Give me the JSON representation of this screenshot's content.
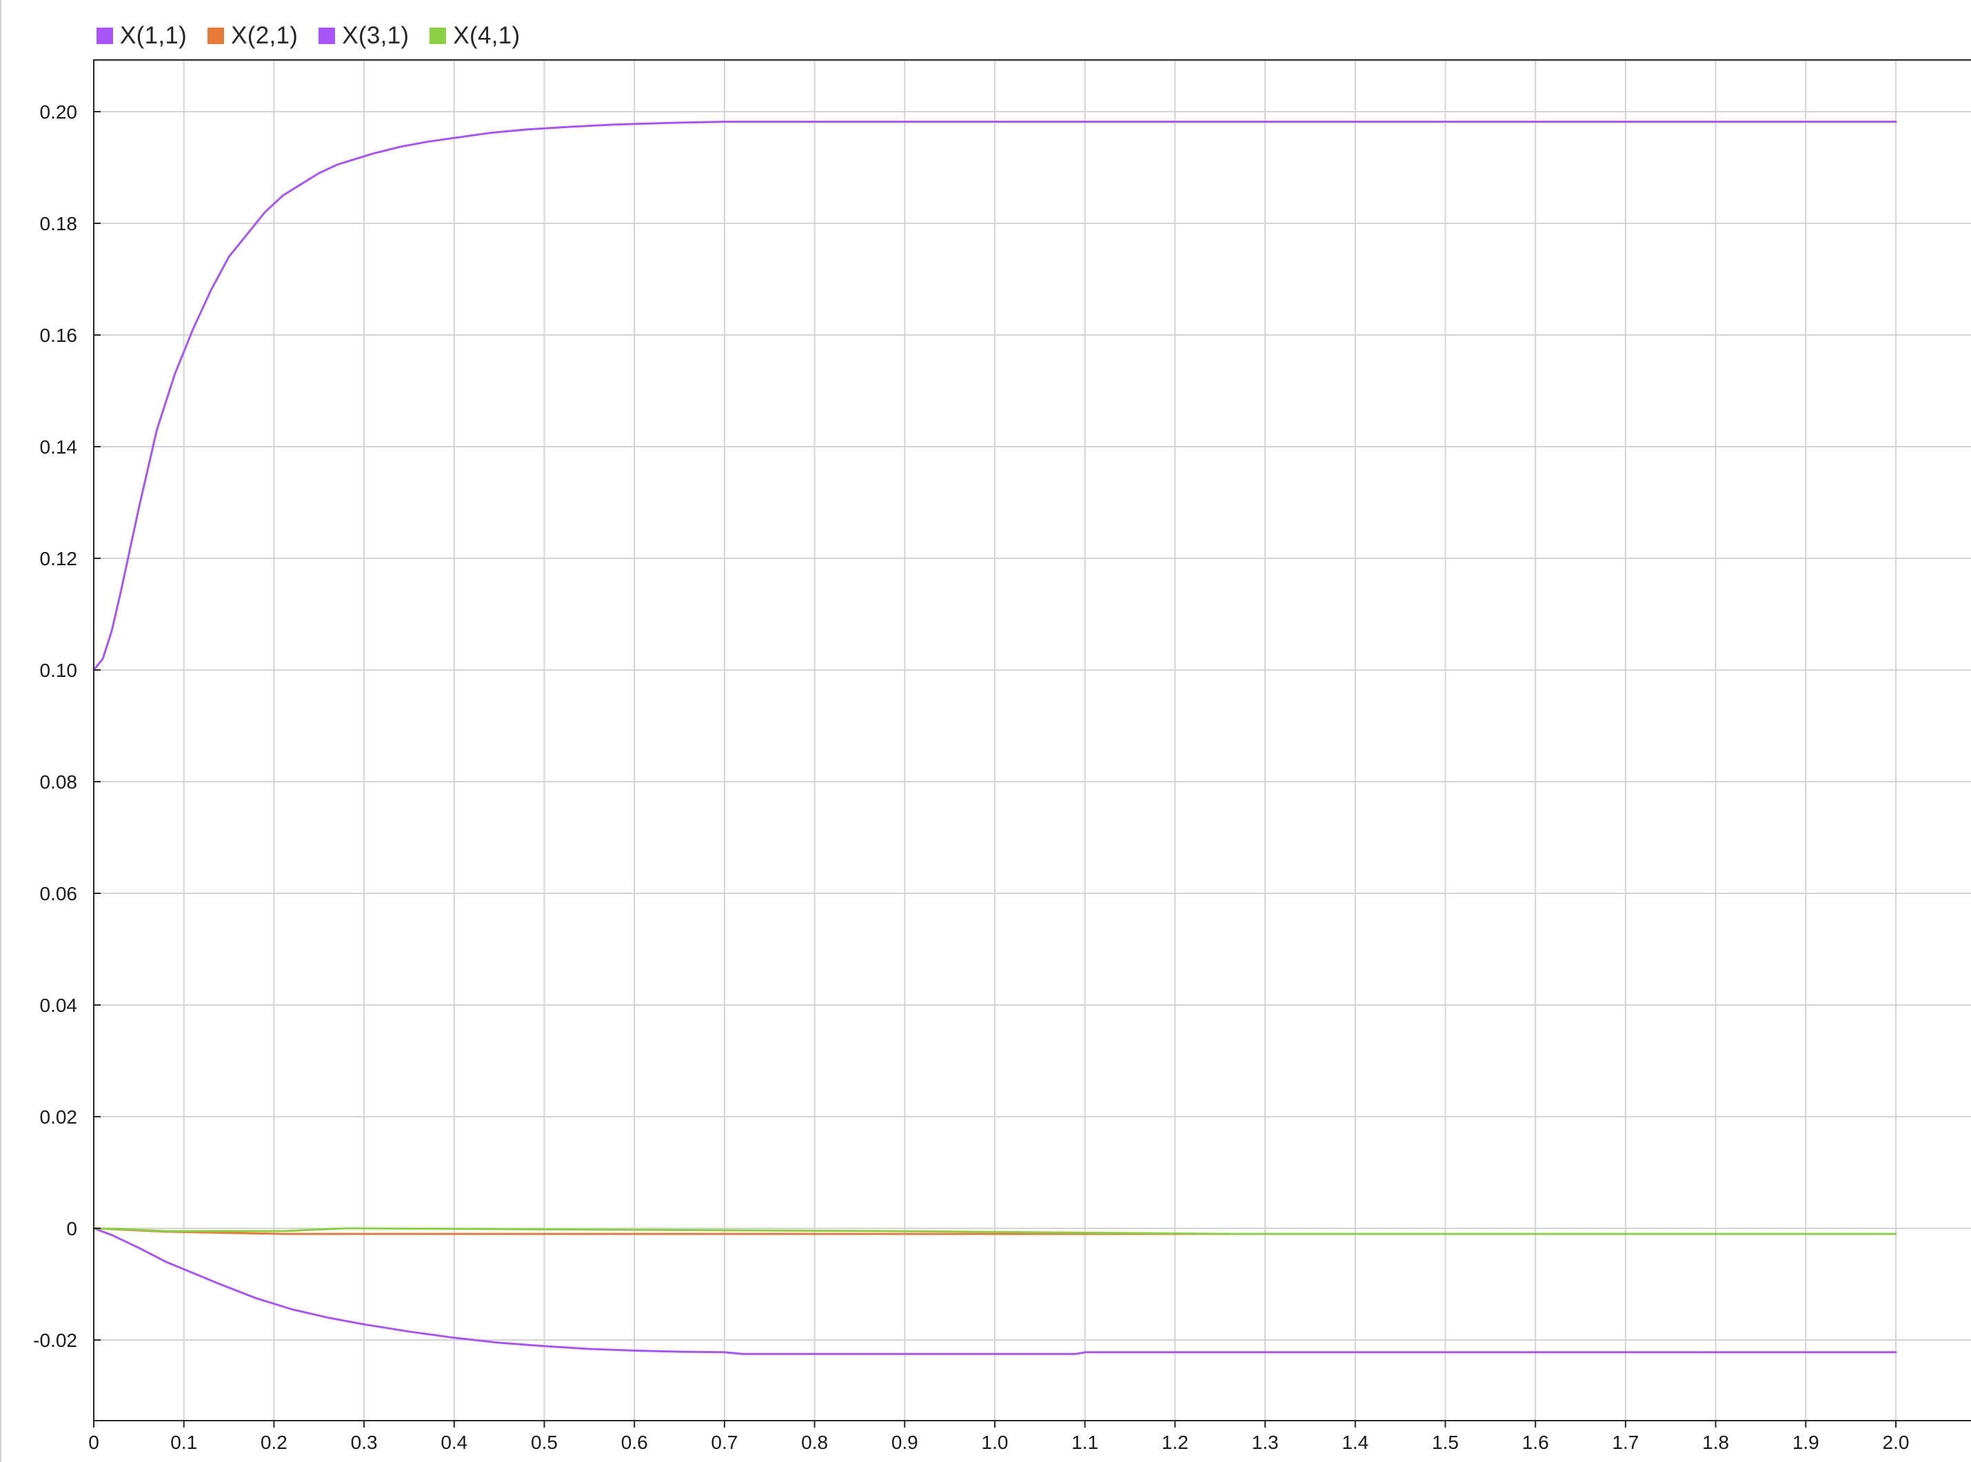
{
  "legend": [
    {
      "label": "X(1,1)",
      "color": "#a855f7"
    },
    {
      "label": "X(2,1)",
      "color": "#e8793a"
    },
    {
      "label": "X(3,1)",
      "color": "#a855f7"
    },
    {
      "label": "X(4,1)",
      "color": "#8cd043"
    }
  ],
  "chart_data": {
    "type": "line",
    "xlim": [
      0,
      2.0
    ],
    "ylim": [
      -0.035,
      0.21
    ],
    "grid": true,
    "legend_position": "top-left",
    "xticks": [
      0,
      0.1,
      0.2,
      0.3,
      0.4,
      0.5,
      0.6,
      0.7,
      0.8,
      0.9,
      1.0,
      1.1,
      1.2,
      1.3,
      1.4,
      1.5,
      1.6,
      1.7,
      1.8,
      1.9,
      2.0
    ],
    "xtick_labels": [
      "0",
      "0.1",
      "0.2",
      "0.3",
      "0.4",
      "0.5",
      "0.6",
      "0.7",
      "0.8",
      "0.9",
      "1.0",
      "1.1",
      "1.2",
      "1.3",
      "1.4",
      "1.5",
      "1.6",
      "1.7",
      "1.8",
      "1.9",
      "2.0"
    ],
    "yticks": [
      -0.02,
      0,
      0.02,
      0.04,
      0.06,
      0.08,
      0.1,
      0.12,
      0.14,
      0.16,
      0.18,
      0.2
    ],
    "ytick_labels": [
      "-0.02",
      "0",
      "0.02",
      "0.04",
      "0.06",
      "0.08",
      "0.10",
      "0.12",
      "0.14",
      "0.16",
      "0.18",
      "0.20"
    ],
    "series": [
      {
        "name": "X(1,1)",
        "color": "#a855f7",
        "x": [
          0,
          0.01,
          0.02,
          0.03,
          0.05,
          0.07,
          0.09,
          0.11,
          0.13,
          0.15,
          0.17,
          0.19,
          0.21,
          0.23,
          0.25,
          0.27,
          0.29,
          0.31,
          0.34,
          0.37,
          0.4,
          0.44,
          0.48,
          0.53,
          0.58,
          0.64,
          0.7,
          2.0
        ],
        "y": [
          0.1,
          0.102,
          0.107,
          0.114,
          0.129,
          0.143,
          0.153,
          0.161,
          0.168,
          0.174,
          0.178,
          0.182,
          0.185,
          0.187,
          0.189,
          0.1905,
          0.1915,
          0.1925,
          0.1937,
          0.1946,
          0.1953,
          0.1962,
          0.1968,
          0.1973,
          0.1977,
          0.198,
          0.1982,
          0.1982
        ]
      },
      {
        "name": "X(2,1)",
        "color": "#e8793a",
        "x": [
          0,
          0.04,
          0.08,
          0.21,
          0.28,
          0.88,
          1.26
        ],
        "y": [
          0,
          -0.0003,
          -0.0006,
          -0.001,
          -0.001,
          -0.001,
          -0.001
        ]
      },
      {
        "name": "X(3,1)",
        "color": "#a855f7",
        "x": [
          0,
          0.02,
          0.05,
          0.08,
          0.11,
          0.14,
          0.18,
          0.22,
          0.26,
          0.3,
          0.35,
          0.4,
          0.45,
          0.5,
          0.55,
          0.6,
          0.65,
          0.7,
          0.72,
          0.9,
          1.09,
          1.1,
          1.5,
          2.0
        ],
        "y": [
          0,
          -0.0012,
          -0.0035,
          -0.006,
          -0.008,
          -0.01,
          -0.0125,
          -0.0145,
          -0.016,
          -0.0172,
          -0.0185,
          -0.0196,
          -0.0205,
          -0.0211,
          -0.0216,
          -0.0219,
          -0.0221,
          -0.0222,
          -0.0225,
          -0.0225,
          -0.0225,
          -0.0222,
          -0.0222,
          -0.0222
        ]
      },
      {
        "name": "X(4,1)",
        "color": "#8cd043",
        "x": [
          0,
          0.04,
          0.08,
          0.21,
          0.28,
          0.88,
          1.26,
          2.0
        ],
        "y": [
          0,
          -0.0002,
          -0.0005,
          -0.0005,
          0,
          -0.0005,
          -0.001,
          -0.001
        ]
      }
    ]
  }
}
